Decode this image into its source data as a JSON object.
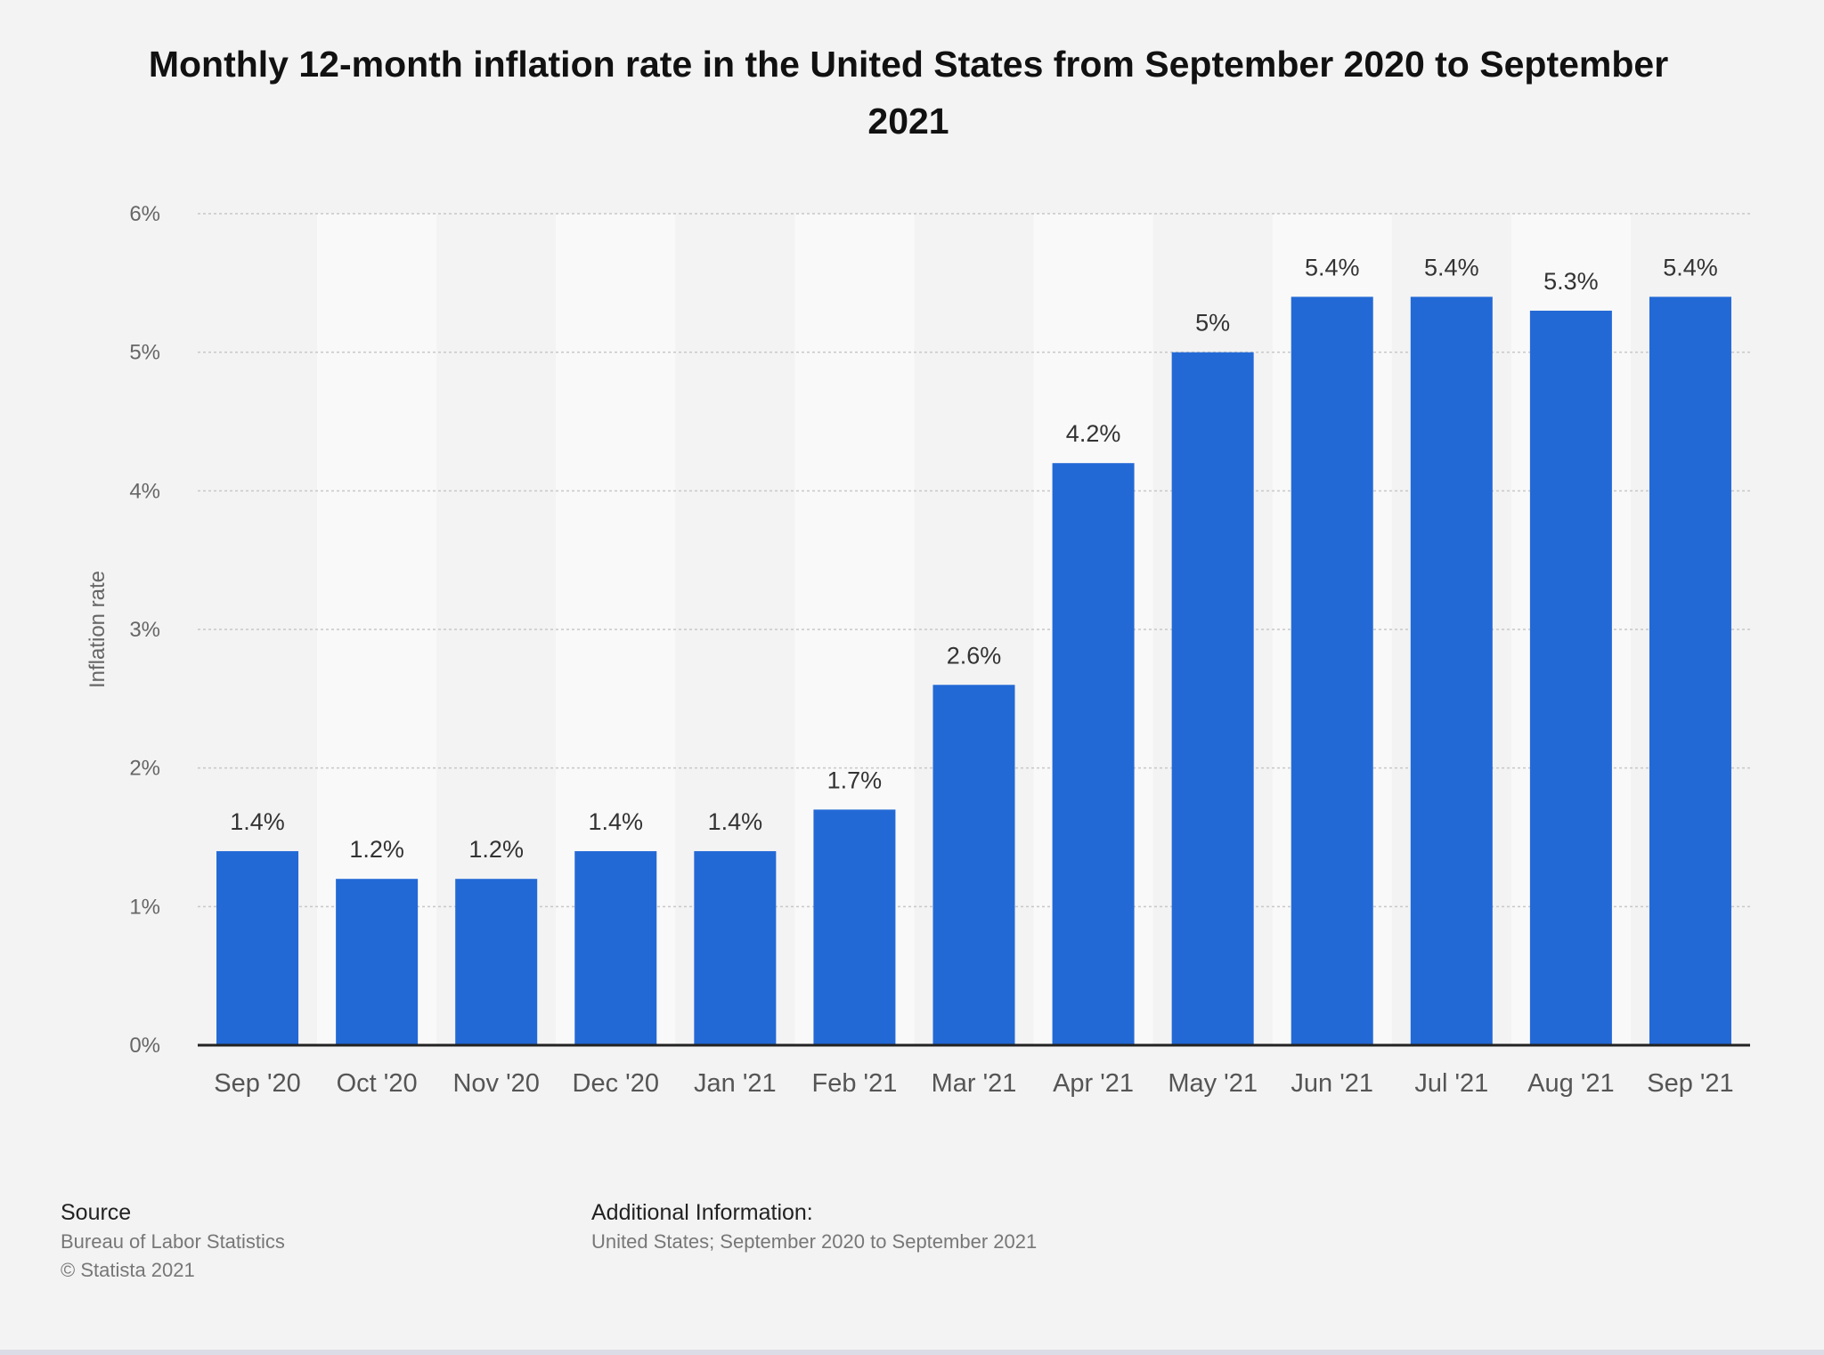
{
  "chart_data": {
    "type": "bar",
    "title": "Monthly 12-month inflation rate in the United States from September 2020 to September 2021",
    "ylabel": "Inflation rate",
    "xlabel": "",
    "categories": [
      "Sep '20",
      "Oct '20",
      "Nov '20",
      "Dec '20",
      "Jan '21",
      "Feb '21",
      "Mar '21",
      "Apr '21",
      "May '21",
      "Jun '21",
      "Jul '21",
      "Aug '21",
      "Sep '21"
    ],
    "values": [
      1.4,
      1.2,
      1.2,
      1.4,
      1.4,
      1.7,
      2.6,
      4.2,
      5.0,
      5.4,
      5.4,
      5.3,
      5.4
    ],
    "data_labels": [
      "1.4%",
      "1.2%",
      "1.2%",
      "1.4%",
      "1.4%",
      "1.7%",
      "2.6%",
      "4.2%",
      "5%",
      "5.4%",
      "5.4%",
      "5.3%",
      "5.4%"
    ],
    "ylim": [
      0,
      6
    ],
    "yticks": [
      0,
      1,
      2,
      3,
      4,
      5,
      6
    ],
    "ytick_labels": [
      "0%",
      "1%",
      "2%",
      "3%",
      "4%",
      "5%",
      "6%"
    ],
    "grid": true,
    "bar_color": "#2369d6"
  },
  "footer": {
    "source_heading": "Source",
    "source_lines": [
      "Bureau of Labor Statistics",
      "© Statista 2021"
    ],
    "info_heading": "Additional Information:",
    "info_lines": [
      "United States; September 2020 to September 2021"
    ]
  }
}
